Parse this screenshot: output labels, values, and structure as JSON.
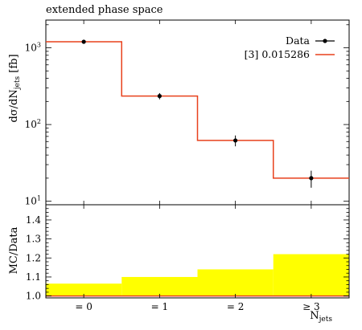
{
  "chart_data": [
    {
      "type": "line",
      "title": "extended phase space",
      "ylabel": "dσ/dN_jets [fb]",
      "yscale": "log",
      "ylim": [
        9,
        2300
      ],
      "yticks": [
        {
          "value": 10,
          "base": "10",
          "exp": "1"
        },
        {
          "value": 100,
          "base": "10",
          "exp": "2"
        },
        {
          "value": 1000,
          "base": "10",
          "exp": "3"
        }
      ],
      "categories": [
        "= 0",
        "= 1",
        "= 2",
        "≥ 3"
      ],
      "series": [
        {
          "name": "Data",
          "kind": "points",
          "color": "#000000",
          "values": [
            1200,
            235,
            62,
            20
          ],
          "errors": [
            40,
            22,
            10,
            5
          ]
        },
        {
          "name": "[3] 0.015286",
          "kind": "step",
          "color": "#e8411c",
          "values": [
            1200,
            235,
            62,
            20
          ]
        }
      ],
      "legend": "top-right"
    },
    {
      "type": "area",
      "ylabel": "MC/Data",
      "ylim": [
        0.99,
        1.48
      ],
      "yticks": [
        "1.0",
        "1.1",
        "1.2",
        "1.3",
        "1.4"
      ],
      "xlabel": "N_jets",
      "categories": [
        "= 0",
        "= 1",
        "= 2",
        "≥ 3"
      ],
      "band": {
        "color": "#ffff00",
        "upper": [
          1.065,
          1.1,
          1.14,
          1.22
        ],
        "lower": [
          1.0,
          1.0,
          1.0,
          1.0
        ]
      },
      "ratio": {
        "color": "#e8411c",
        "values": [
          1.0,
          1.0,
          1.0,
          1.0
        ]
      }
    }
  ]
}
